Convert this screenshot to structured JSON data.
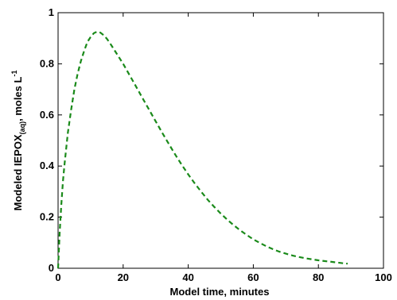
{
  "chart_data": {
    "type": "line",
    "xlim": [
      0,
      100
    ],
    "ylim": [
      0,
      1
    ],
    "x_ticks": [
      "0",
      "20",
      "40",
      "60",
      "80",
      "100"
    ],
    "y_ticks": [
      "0",
      "0.2",
      "0.4",
      "0.6",
      "0.8",
      "1"
    ],
    "xlabel": "Model time, minutes",
    "ylabel": {
      "main": "Modeled IEPOX",
      "subscript": "(aq)",
      "units": ", moles L",
      "superscript": "-1"
    },
    "grid": false,
    "line_color": "#1a8a1a",
    "line_style": "dashed",
    "series": [
      {
        "x": [
          0,
          0.5,
          1,
          1.5,
          2,
          3,
          4,
          5,
          6,
          7,
          8,
          9,
          10,
          11,
          12,
          13,
          14,
          15,
          16,
          18,
          20,
          22,
          24,
          26,
          28,
          30,
          32,
          34,
          36,
          38,
          40,
          42,
          44,
          46,
          48,
          50,
          52,
          54,
          56,
          58,
          60,
          62,
          64,
          66,
          68,
          70,
          72,
          74,
          76,
          78,
          80,
          82,
          84,
          86,
          88,
          89
        ],
        "y": [
          0.0,
          0.14,
          0.25,
          0.34,
          0.41,
          0.53,
          0.62,
          0.7,
          0.76,
          0.81,
          0.85,
          0.885,
          0.905,
          0.92,
          0.926,
          0.922,
          0.912,
          0.898,
          0.88,
          0.84,
          0.8,
          0.755,
          0.71,
          0.665,
          0.62,
          0.575,
          0.53,
          0.487,
          0.445,
          0.405,
          0.367,
          0.332,
          0.299,
          0.268,
          0.24,
          0.214,
          0.19,
          0.168,
          0.148,
          0.13,
          0.113,
          0.099,
          0.086,
          0.075,
          0.065,
          0.057,
          0.05,
          0.044,
          0.039,
          0.035,
          0.031,
          0.028,
          0.025,
          0.022,
          0.019,
          0.018
        ]
      }
    ]
  }
}
